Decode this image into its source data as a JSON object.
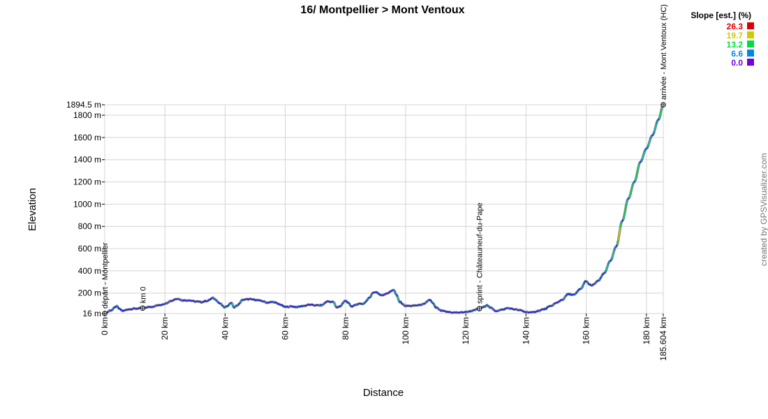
{
  "chart_data": {
    "type": "area",
    "title": "16/ Montpellier > Mont Ventoux",
    "xlabel": "Distance",
    "ylabel": "Elevation",
    "x_unit": "km",
    "y_unit": "m",
    "xlim": [
      0,
      185.604
    ],
    "ylim": [
      16,
      1894.5
    ],
    "x_ticks": [
      "0 km",
      "20 km",
      "40 km",
      "60 km",
      "80 km",
      "100 km",
      "120 km",
      "140 km",
      "160 km",
      "180 km",
      "185.604 km"
    ],
    "x_tick_values": [
      0,
      20,
      40,
      60,
      80,
      100,
      120,
      140,
      160,
      180,
      185.604
    ],
    "y_ticks": [
      "16 m",
      "200 m",
      "400 m",
      "600 m",
      "800 m",
      "1000 m",
      "1200 m",
      "1400 m",
      "1600 m",
      "1800 m",
      "1894.5 m"
    ],
    "y_tick_values": [
      16,
      200,
      400,
      600,
      800,
      1000,
      1200,
      1400,
      1600,
      1800,
      1894.5
    ],
    "grid": true,
    "series": [
      {
        "x": [
          0,
          2,
          4,
          5,
          6,
          8,
          10,
          12.6,
          15,
          18,
          20,
          22,
          24,
          26,
          28,
          30,
          32,
          34,
          36,
          37,
          38,
          40,
          41,
          42,
          43,
          44,
          46,
          48,
          50,
          52,
          54,
          56,
          58,
          60,
          62,
          64,
          66,
          68,
          70,
          72,
          74,
          76,
          77,
          78,
          80,
          81,
          82,
          83,
          84,
          86,
          87,
          88,
          89,
          90,
          92,
          94,
          96,
          97,
          98,
          100,
          102,
          104,
          106,
          108,
          109,
          110,
          112,
          114,
          116,
          118,
          120,
          122,
          124.5,
          126,
          127,
          128,
          130,
          132,
          134,
          136,
          138,
          140,
          142,
          144,
          146,
          148,
          150,
          152,
          154,
          156,
          158,
          160,
          161,
          162,
          164,
          166,
          168,
          170,
          172,
          174,
          176,
          178,
          180,
          182,
          184,
          185.604
        ],
        "y": [
          16,
          45,
          80,
          55,
          40,
          55,
          60,
          65,
          75,
          90,
          105,
          130,
          150,
          135,
          135,
          125,
          120,
          130,
          155,
          140,
          110,
          70,
          90,
          115,
          70,
          90,
          140,
          145,
          140,
          130,
          115,
          120,
          100,
          75,
          80,
          75,
          85,
          95,
          90,
          90,
          125,
          120,
          70,
          80,
          130,
          115,
          75,
          90,
          100,
          105,
          130,
          160,
          200,
          210,
          180,
          200,
          230,
          180,
          120,
          85,
          85,
          90,
          100,
          140,
          110,
          70,
          40,
          30,
          25,
          25,
          30,
          40,
          60,
          75,
          95,
          70,
          40,
          50,
          65,
          55,
          45,
          30,
          25,
          40,
          55,
          80,
          110,
          140,
          190,
          185,
          235,
          310,
          275,
          270,
          310,
          380,
          490,
          620,
          850,
          1050,
          1200,
          1380,
          1500,
          1620,
          1760,
          1894.5
        ]
      }
    ],
    "waypoints": [
      {
        "label": "départ - Montpellier",
        "x": 0,
        "y": 16
      },
      {
        "label": "km 0",
        "x": 12.6,
        "y": 65
      },
      {
        "label": "sprint - Châteauneuf-du-Pape",
        "x": 124.5,
        "y": 60
      },
      {
        "label": "arrivée - Mont Ventoux (HC)",
        "x": 185.604,
        "y": 1894.5
      }
    ],
    "legend": {
      "title": "Slope [est.] (%)",
      "position": "top-right",
      "items": [
        {
          "label": "26.3",
          "color": "#dd0000"
        },
        {
          "label": "19.7",
          "color": "#cccc00"
        },
        {
          "label": "13.2",
          "color": "#00dd44"
        },
        {
          "label": "6.6",
          "color": "#0088dd"
        },
        {
          "label": "0.0",
          "color": "#7700dd"
        }
      ]
    },
    "gradient_colors": [
      "#7700dd",
      "#0033dd",
      "#0088dd",
      "#00ccaa",
      "#00dd44",
      "#cccc00",
      "#dd0000"
    ],
    "profile_stroke_color": "#808080"
  },
  "credit": "created by GPSVisualizer.com"
}
